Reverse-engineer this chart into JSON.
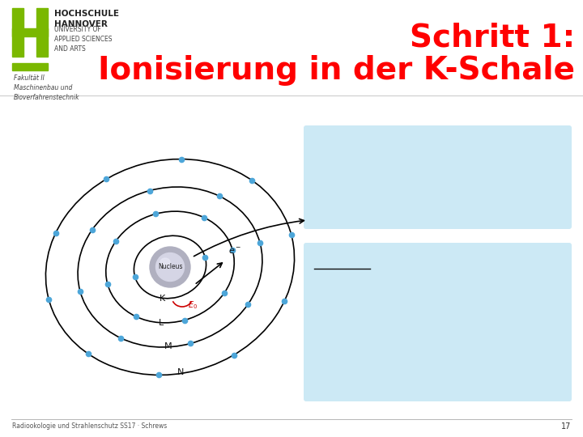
{
  "bg_color": "#ffffff",
  "title_line1": "Schritt 1:",
  "title_line2": "Ionisierung in der K-Schale",
  "title_color": "#ff0000",
  "title_fontsize": 28,
  "logo_h_color": "#7ab800",
  "footer_text": "Radiookologie und Strahlenschutz SS17 · Schrews",
  "page_num": "17",
  "electron_color": "#4da6d9",
  "nucleus_text": "Nucleus",
  "shell_labels": [
    "K",
    "L",
    "M",
    "N"
  ],
  "shell_r": [
    45,
    80,
    115,
    155
  ],
  "e_counts": [
    2,
    8,
    8,
    10
  ],
  "arrow_color": "#000000",
  "e0_color": "#cc0000",
  "box_color": "#cce9f5"
}
